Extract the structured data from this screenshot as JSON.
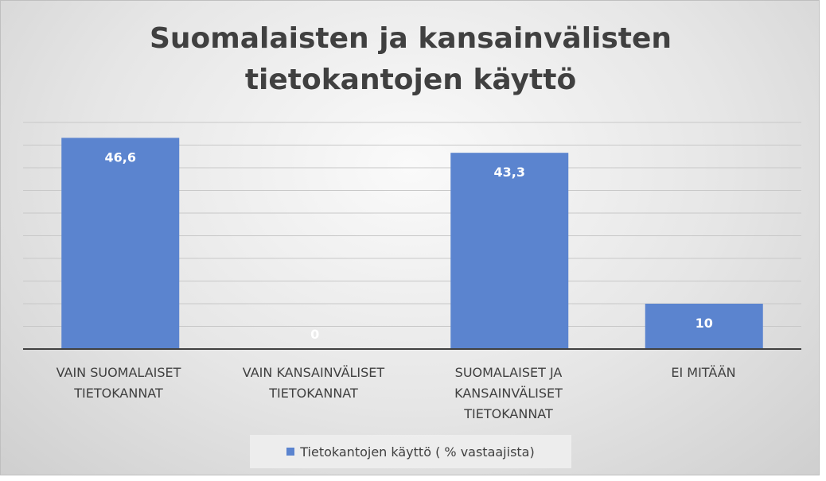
{
  "chart_data": {
    "type": "bar",
    "title_lines": [
      "Suomalaisten ja kansainvälisten",
      "tietokantojen käyttö"
    ],
    "categories": [
      [
        "VAIN SUOMALAISET",
        "TIETOKANNAT"
      ],
      [
        "VAIN KANSAINVÄLISET",
        "TIETOKANNAT"
      ],
      [
        "SUOMALAISET JA",
        "KANSAINVÄLISET",
        "TIETOKANNAT"
      ],
      [
        "EI MITÄÄN"
      ]
    ],
    "series": [
      {
        "name": "Tietokantojen käyttö ( % vastaajista)",
        "values": [
          46.6,
          0,
          43.3,
          10
        ],
        "data_labels": [
          "46,6",
          "0",
          "43,3",
          "10"
        ]
      }
    ],
    "ylim": [
      0,
      50
    ],
    "grid": true,
    "legend": "bottom",
    "bar_color": "#5b84cf",
    "label_color": "#ffffff",
    "grid_color": "#c8c8c8",
    "axis_color": "#404040"
  }
}
